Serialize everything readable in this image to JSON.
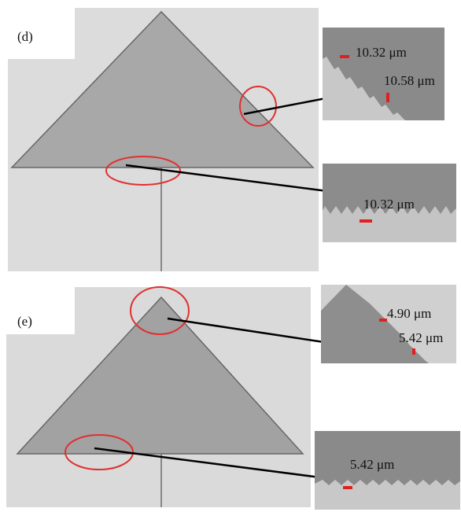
{
  "panels": [
    {
      "label": "(d)",
      "zoom_labels": [
        "10.32 μm",
        "10.58 μm",
        "10.32 μm"
      ]
    },
    {
      "label": "(e)",
      "zoom_labels": [
        "4.90 μm",
        "5.42 μm",
        "5.42 μm"
      ]
    }
  ]
}
